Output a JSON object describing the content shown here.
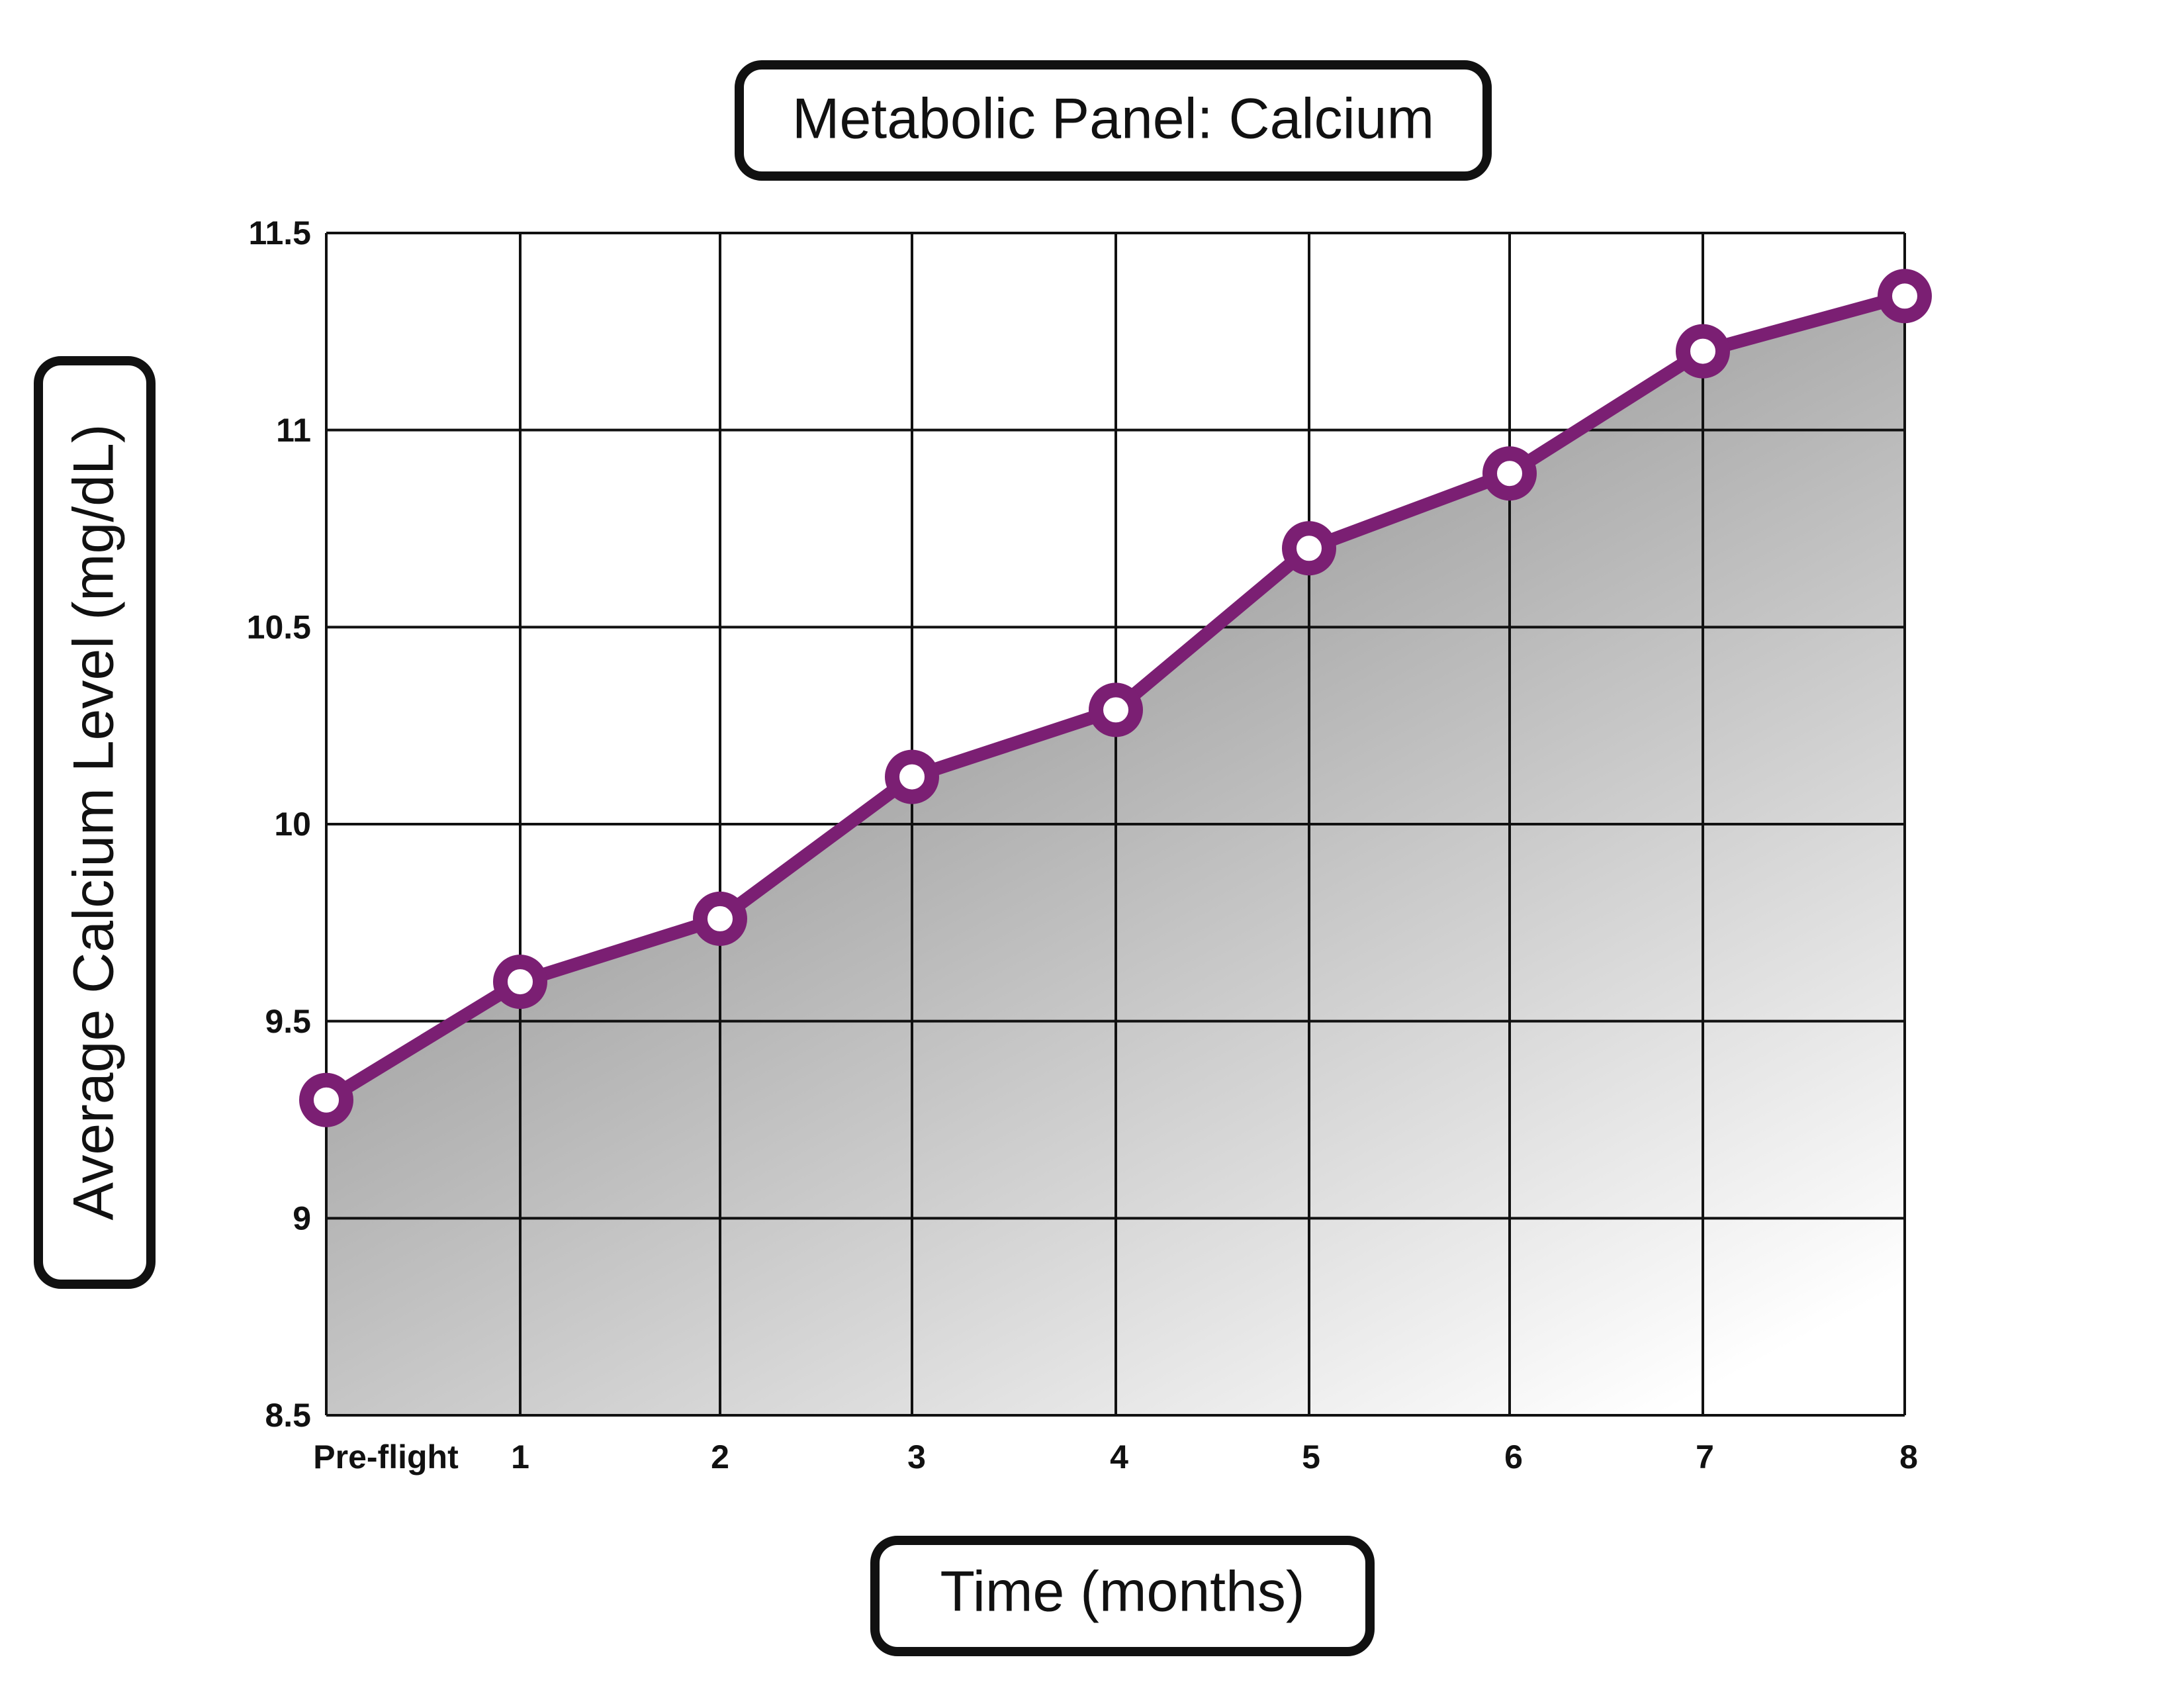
{
  "chart_data": {
    "type": "area",
    "title": "Metabolic Panel: Calcium",
    "xlabel": "Time (months)",
    "ylabel": "Average Calcium Level (mg/dL)",
    "categories": [
      "Pre-flight",
      "1",
      "2",
      "3",
      "4",
      "5",
      "6",
      "7",
      "8"
    ],
    "series": [
      {
        "values": [
          9.3,
          9.6,
          9.76,
          10.12,
          10.29,
          10.7,
          10.89,
          11.2,
          11.34
        ]
      }
    ],
    "yticks": [
      "8.5",
      "9",
      "9.5",
      "10",
      "10.5",
      "11",
      "11.5"
    ],
    "ylim": [
      8.5,
      11.5
    ],
    "grid": true,
    "line_color": "#7b1f73",
    "marker_fill": "#ffffff",
    "fill_gradient": [
      "#999999",
      "#ffffff"
    ]
  }
}
